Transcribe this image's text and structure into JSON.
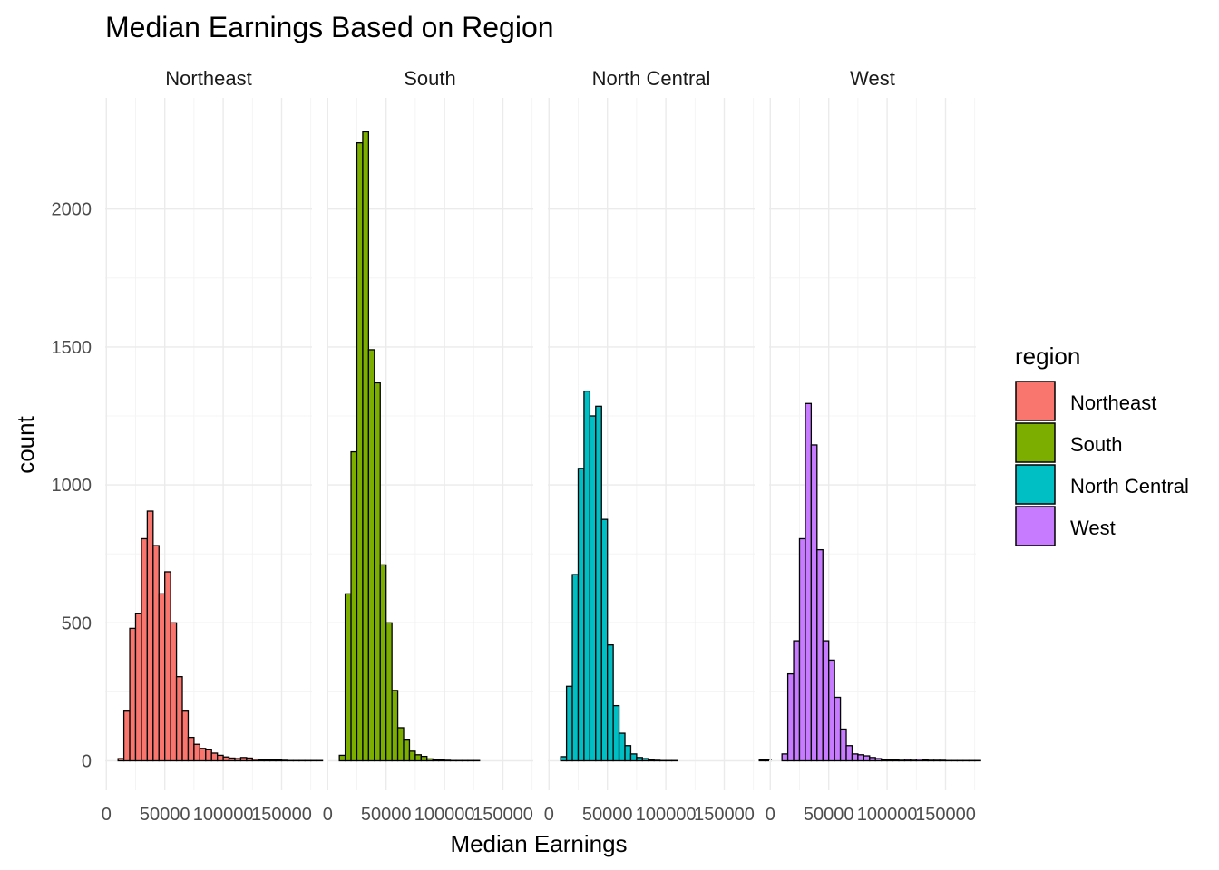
{
  "chart_data": {
    "type": "bar",
    "title": "Median Earnings Based on Region",
    "xlabel": "Median Earnings",
    "ylabel": "count",
    "xlim": [
      0,
      180000
    ],
    "ylim": [
      0,
      2300
    ],
    "x_ticks": [
      0,
      50000,
      100000,
      150000
    ],
    "y_ticks": [
      0,
      500,
      1000,
      1500,
      2000
    ],
    "bin_width": 5000,
    "bin_start": 10000,
    "grid": true,
    "legend": {
      "title": "region",
      "position": "right"
    },
    "panels": [
      {
        "name": "Northeast",
        "color": "#F8766D",
        "counts": [
          8,
          180,
          480,
          535,
          805,
          905,
          780,
          605,
          685,
          500,
          305,
          180,
          85,
          60,
          45,
          40,
          28,
          20,
          14,
          10,
          8,
          12,
          10,
          6,
          4,
          3,
          3,
          3,
          2,
          1,
          1,
          1,
          1,
          1,
          1,
          0
        ]
      },
      {
        "name": "South",
        "color": "#7CAE00",
        "counts": [
          20,
          605,
          1120,
          2240,
          2280,
          1490,
          1370,
          710,
          500,
          255,
          120,
          75,
          35,
          22,
          16,
          7,
          4,
          3,
          2,
          1,
          1,
          1,
          1,
          1,
          0,
          0,
          0,
          0,
          0,
          0,
          0,
          0,
          0,
          0,
          0,
          0
        ]
      },
      {
        "name": "North Central",
        "color": "#00BFC4",
        "counts": [
          15,
          270,
          675,
          1060,
          1340,
          1250,
          1285,
          875,
          420,
          200,
          100,
          55,
          25,
          12,
          8,
          4,
          2,
          1,
          1,
          1,
          0,
          0,
          0,
          0,
          0,
          0,
          0,
          0,
          0,
          0,
          0,
          0,
          0,
          0,
          4,
          4
        ]
      },
      {
        "name": "West",
        "color": "#C77CFF",
        "counts": [
          25,
          315,
          435,
          805,
          1295,
          1145,
          765,
          435,
          365,
          230,
          115,
          55,
          25,
          22,
          18,
          12,
          8,
          4,
          3,
          3,
          2,
          5,
          2,
          6,
          3,
          2,
          2,
          2,
          1,
          1,
          1,
          1,
          1,
          1,
          0,
          0
        ]
      }
    ]
  }
}
